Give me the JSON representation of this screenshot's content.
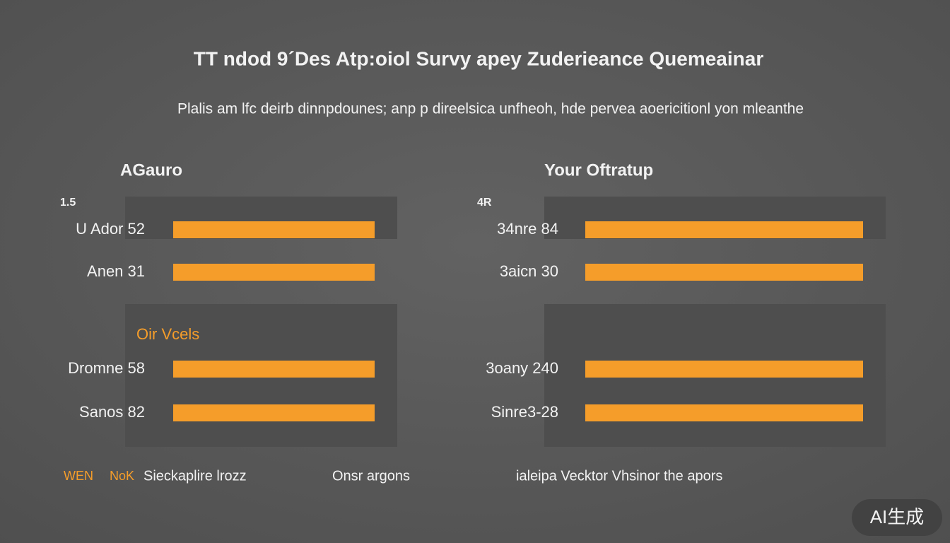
{
  "header": {
    "title": "TT ndod 9´Des Atp:oiol Survy apey Zuderieance Quemeainar",
    "subtitle": "Plalis am lfc deirb dinnpdounes; anp p direelsica unfheoh, hde pervea aoericitionl yon mleanthe"
  },
  "panels": [
    {
      "heading": "AGauro",
      "corner": "1.5",
      "rows": [
        {
          "label": "U Ador 52"
        },
        {
          "label": "Anen 31"
        }
      ],
      "section": "Oir Vcels",
      "section_rows": [
        {
          "label": "Dromne 58"
        },
        {
          "label": "Sanos 82"
        }
      ]
    },
    {
      "heading": "Your Oftratup",
      "corner": "4R",
      "rows": [
        {
          "label": "34nre 84"
        },
        {
          "label": "3aicn 30"
        }
      ],
      "section_rows": [
        {
          "label": "3oany 240"
        },
        {
          "label": "Sinre3-28"
        }
      ]
    }
  ],
  "footer": {
    "items": [
      "WEN",
      "NoK",
      "Sieckaplire lrozz",
      "Onsr argons",
      "ialeipa Vecktor Vhsinor the apors"
    ]
  },
  "badge": "AI生成"
}
